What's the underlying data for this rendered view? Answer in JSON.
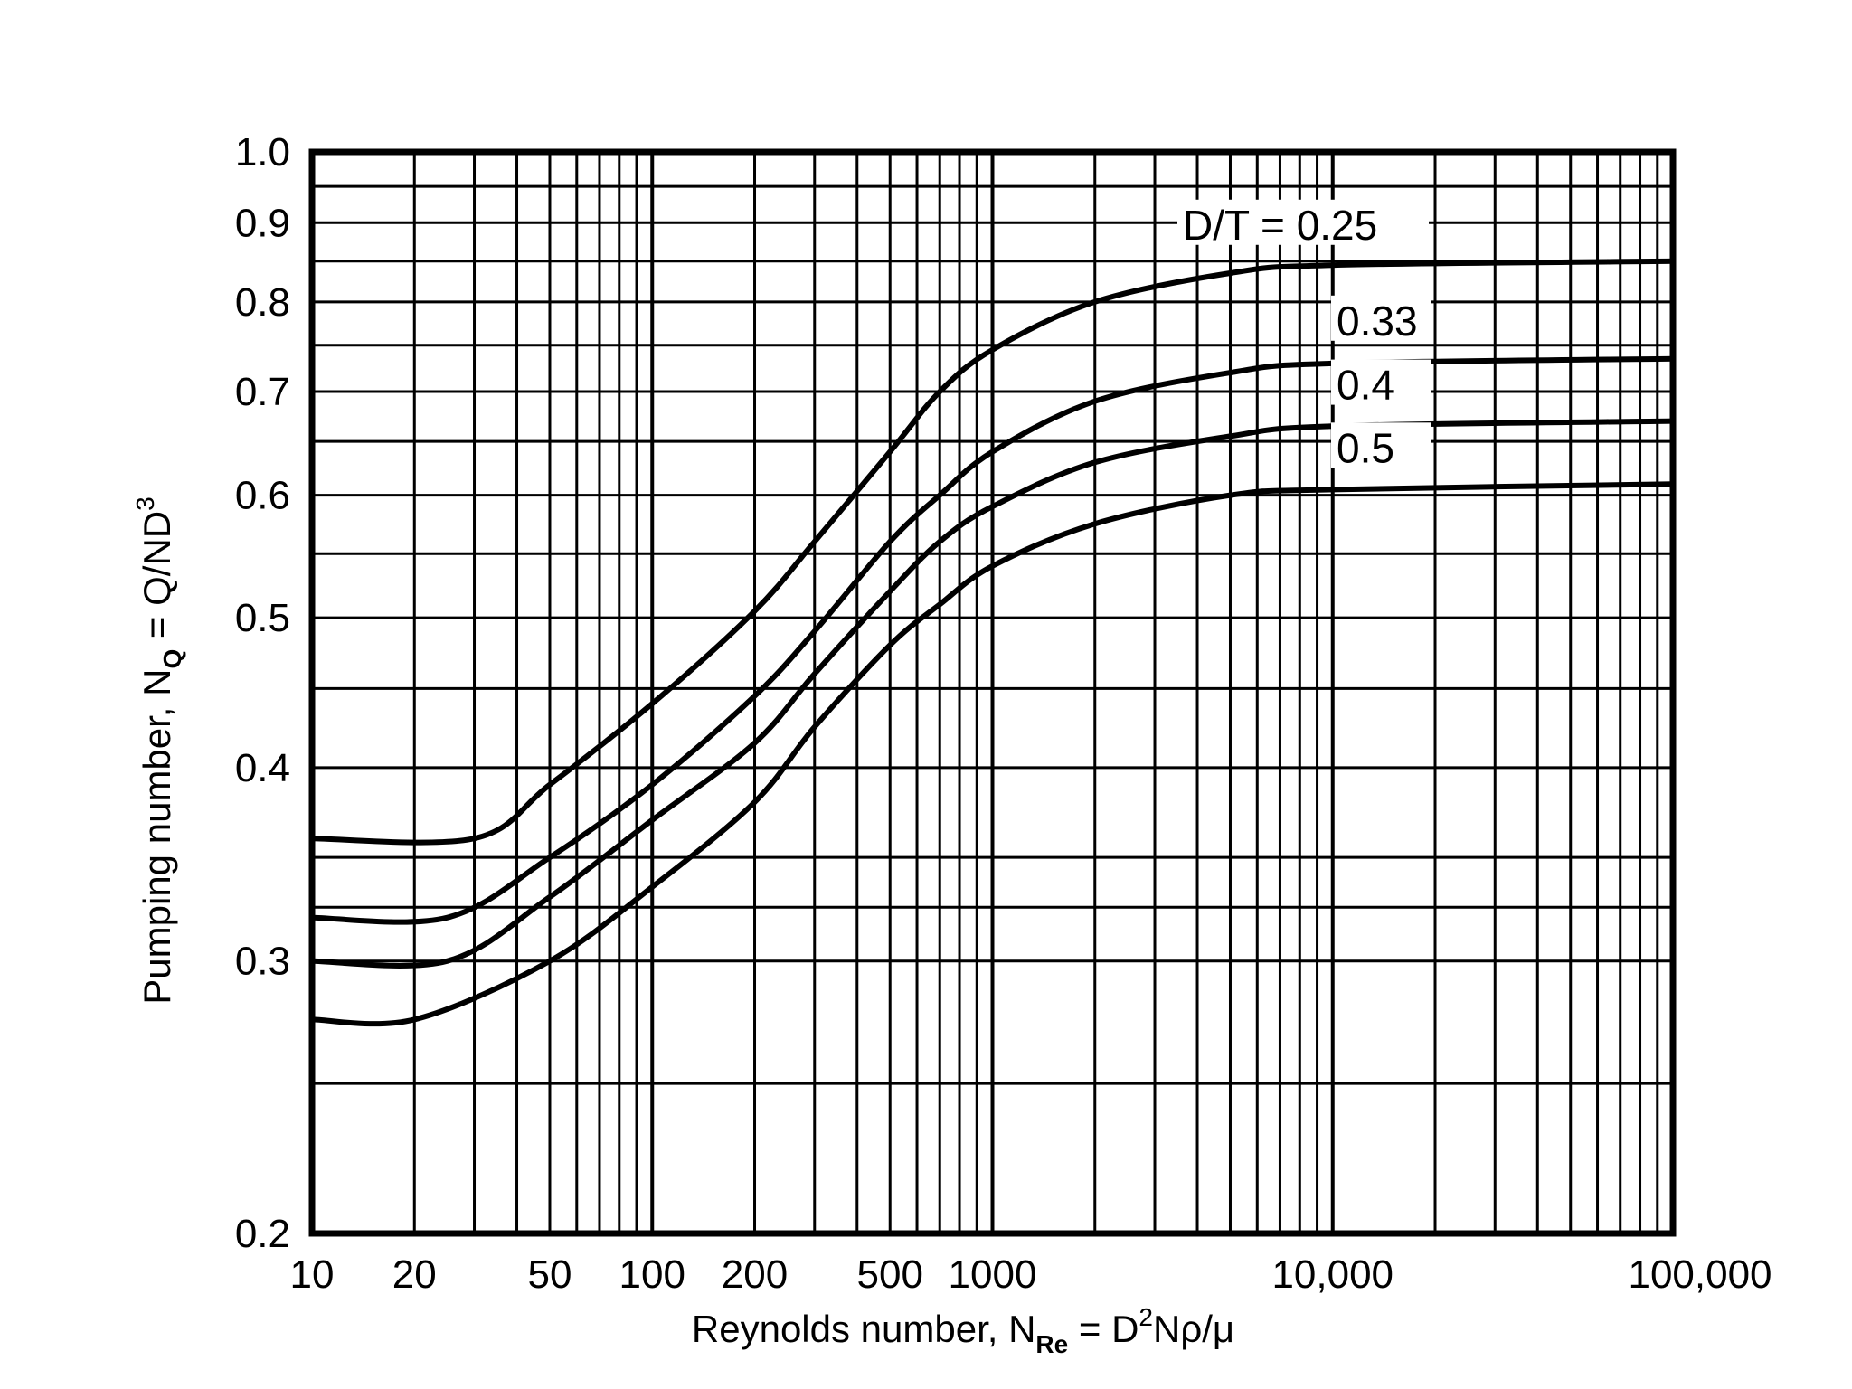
{
  "chart_data": {
    "type": "line",
    "x_scale": "log",
    "y_scale": "log",
    "xlim": [
      10,
      100000
    ],
    "ylim": [
      0.2,
      1.0
    ],
    "grid": true,
    "x_tick_labels": [
      {
        "value": 10,
        "label": "10"
      },
      {
        "value": 20,
        "label": "20"
      },
      {
        "value": 50,
        "label": "50"
      },
      {
        "value": 100,
        "label": "100"
      },
      {
        "value": 200,
        "label": "200"
      },
      {
        "value": 500,
        "label": "500"
      },
      {
        "value": 1000,
        "label": "1000"
      },
      {
        "value": 10000,
        "label": "10,000"
      },
      {
        "value": 100000,
        "label": "100,000"
      }
    ],
    "y_tick_labels": [
      {
        "value": 0.2,
        "label": "0.2"
      },
      {
        "value": 0.3,
        "label": "0.3"
      },
      {
        "value": 0.4,
        "label": "0.4"
      },
      {
        "value": 0.5,
        "label": "0.5"
      },
      {
        "value": 0.6,
        "label": "0.6"
      },
      {
        "value": 0.7,
        "label": "0.7"
      },
      {
        "value": 0.8,
        "label": "0.8"
      },
      {
        "value": 0.9,
        "label": "0.9"
      },
      {
        "value": 1.0,
        "label": "1.0"
      }
    ],
    "xlabel": {
      "prefix": "Reynolds number,  N",
      "sub": "Re",
      "mid": " = D",
      "sup": "2",
      "suffix": "Nρ/μ"
    },
    "ylabel": {
      "prefix": "Pumping number,  N",
      "sub": "Q",
      "mid": " = Q/ND",
      "sup": "3"
    },
    "series": [
      {
        "name": "D/T = 0.25",
        "points": [
          [
            10,
            0.36
          ],
          [
            30,
            0.36
          ],
          [
            50,
            0.39
          ],
          [
            100,
            0.44
          ],
          [
            200,
            0.505
          ],
          [
            300,
            0.56
          ],
          [
            500,
            0.64
          ],
          [
            700,
            0.7
          ],
          [
            1000,
            0.745
          ],
          [
            2000,
            0.8
          ],
          [
            5000,
            0.835
          ],
          [
            10000,
            0.845
          ],
          [
            100000,
            0.85
          ]
        ]
      },
      {
        "name": "0.33",
        "points": [
          [
            10,
            0.32
          ],
          [
            25,
            0.32
          ],
          [
            50,
            0.35
          ],
          [
            100,
            0.39
          ],
          [
            200,
            0.445
          ],
          [
            300,
            0.49
          ],
          [
            500,
            0.56
          ],
          [
            700,
            0.6
          ],
          [
            1000,
            0.64
          ],
          [
            2000,
            0.69
          ],
          [
            5000,
            0.72
          ],
          [
            10000,
            0.73
          ],
          [
            100000,
            0.735
          ]
        ]
      },
      {
        "name": "0.4",
        "points": [
          [
            10,
            0.3
          ],
          [
            25,
            0.3
          ],
          [
            50,
            0.33
          ],
          [
            100,
            0.37
          ],
          [
            200,
            0.415
          ],
          [
            300,
            0.46
          ],
          [
            500,
            0.52
          ],
          [
            700,
            0.56
          ],
          [
            1000,
            0.59
          ],
          [
            2000,
            0.63
          ],
          [
            5000,
            0.655
          ],
          [
            10000,
            0.665
          ],
          [
            100000,
            0.67
          ]
        ]
      },
      {
        "name": "0.5",
        "points": [
          [
            10,
            0.275
          ],
          [
            20,
            0.275
          ],
          [
            50,
            0.3
          ],
          [
            100,
            0.335
          ],
          [
            200,
            0.38
          ],
          [
            300,
            0.425
          ],
          [
            500,
            0.48
          ],
          [
            700,
            0.51
          ],
          [
            1000,
            0.54
          ],
          [
            2000,
            0.575
          ],
          [
            5000,
            0.6
          ],
          [
            10000,
            0.605
          ],
          [
            100000,
            0.61
          ]
        ]
      }
    ]
  }
}
